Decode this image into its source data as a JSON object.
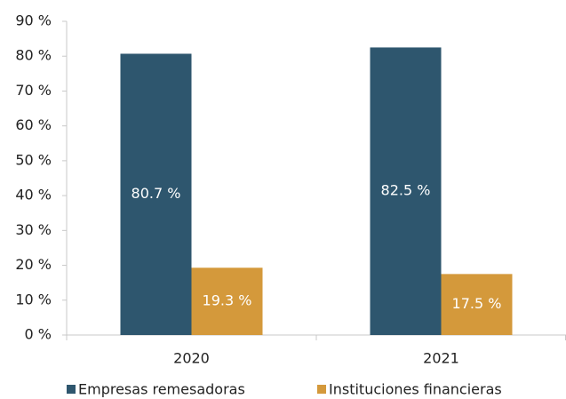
{
  "chart_data": {
    "type": "bar",
    "categories": [
      "2020",
      "2021"
    ],
    "series": [
      {
        "name": "Empresas remesadoras",
        "color": "#2e566e",
        "values": [
          80.7,
          82.5
        ],
        "value_labels": [
          "80.7 %",
          "82.5 %"
        ]
      },
      {
        "name": "Instituciones financieras",
        "color": "#d4993b",
        "values": [
          19.3,
          17.5
        ],
        "value_labels": [
          "19.3 %",
          "17.5 %"
        ]
      }
    ],
    "ylim": [
      0,
      90
    ],
    "yticks": [
      {
        "value": 0,
        "label": "0 %"
      },
      {
        "value": 10,
        "label": "10 %"
      },
      {
        "value": 20,
        "label": "20 %"
      },
      {
        "value": 30,
        "label": "30 %"
      },
      {
        "value": 40,
        "label": "40 %"
      },
      {
        "value": 50,
        "label": "50 %"
      },
      {
        "value": 60,
        "label": "60 %"
      },
      {
        "value": 70,
        "label": "70 %"
      },
      {
        "value": 80,
        "label": "80 %"
      },
      {
        "value": 90,
        "label": "90 %"
      }
    ],
    "grid": false,
    "legend": "bottom"
  }
}
